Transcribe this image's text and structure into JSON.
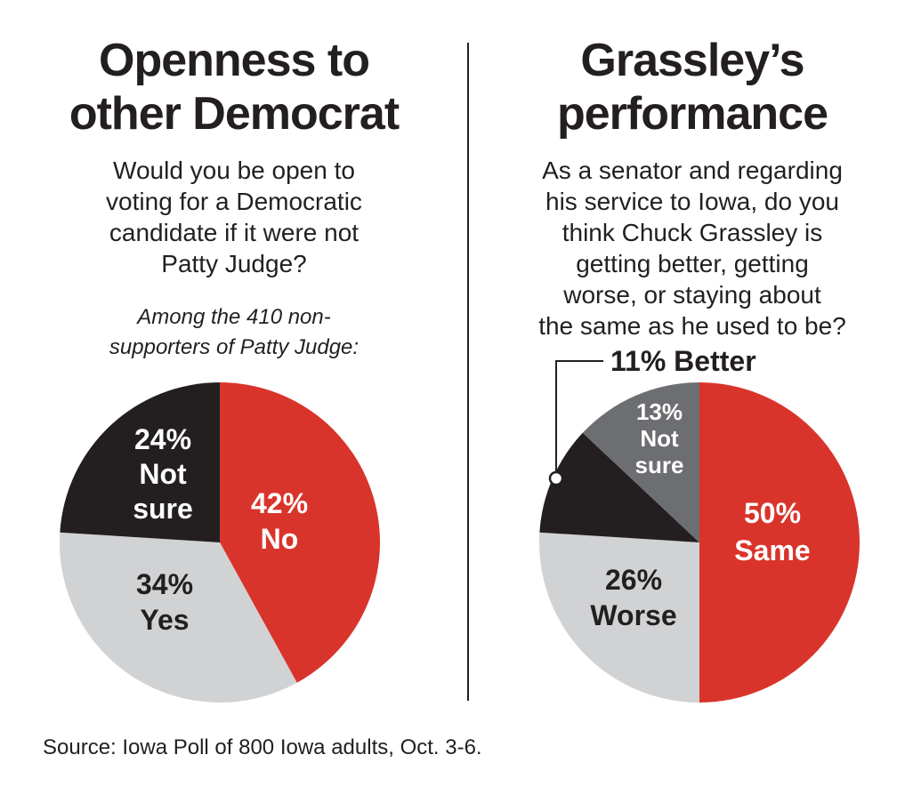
{
  "left": {
    "title_line1": "Openness to",
    "title_line2": "other Democrat",
    "question_lines": [
      "Would you be open to",
      "voting for a Democratic",
      "candidate if it were not",
      "Patty Judge?"
    ],
    "subnote_lines": [
      "Among the 410 non-",
      "supporters of Patty Judge:"
    ]
  },
  "right": {
    "title_line1": "Grassley’s",
    "title_line2": "performance",
    "question_lines": [
      "As a senator and regarding",
      "his service to Iowa, do you",
      "think Chuck Grassley is",
      "getting better, getting",
      "worse, or staying about",
      "the same as he used to be?"
    ]
  },
  "source": "Source: Iowa Poll of 800 Iowa adults, Oct. 3-6.",
  "chart_data": [
    {
      "type": "pie",
      "title": "Openness to other Democrat",
      "slices": [
        {
          "label": "No",
          "pct_text": "42%",
          "value": 42,
          "color": "#d9342b",
          "text_color": "#ffffff"
        },
        {
          "label": "Yes",
          "pct_text": "34%",
          "value": 34,
          "color": "#d1d2d4",
          "text_color": "#231f20"
        },
        {
          "label": "Not sure",
          "pct_text": "24%",
          "label_lines": [
            "Not",
            "sure"
          ],
          "value": 24,
          "color": "#231f20",
          "text_color": "#ffffff"
        }
      ]
    },
    {
      "type": "pie",
      "title": "Grassley’s performance",
      "slices": [
        {
          "label": "Same",
          "pct_text": "50%",
          "value": 50,
          "color": "#d9342b",
          "text_color": "#ffffff"
        },
        {
          "label": "Worse",
          "pct_text": "26%",
          "value": 26,
          "color": "#d1d2d4",
          "text_color": "#231f20"
        },
        {
          "label": "Better",
          "pct_text": "11%",
          "value": 11,
          "color": "#231f20",
          "text_color": "#231f20",
          "callout": "11% Better"
        },
        {
          "label": "Not sure",
          "pct_text": "13%",
          "label_lines": [
            "Not",
            "sure"
          ],
          "value": 13,
          "color": "#6d6e71",
          "text_color": "#ffffff"
        }
      ]
    }
  ]
}
